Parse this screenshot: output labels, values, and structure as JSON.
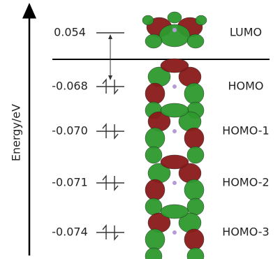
{
  "axis_label": "Energy/eV",
  "levels": [
    {
      "energy": "0.054",
      "label": "LUMO"
    },
    {
      "energy": "-0.068",
      "label": "HOMO"
    },
    {
      "energy": "-0.070",
      "label": "HOMO-1"
    },
    {
      "energy": "-0.071",
      "label": "HOMO-2"
    },
    {
      "energy": "-0.074",
      "label": "HOMO-3"
    }
  ]
}
